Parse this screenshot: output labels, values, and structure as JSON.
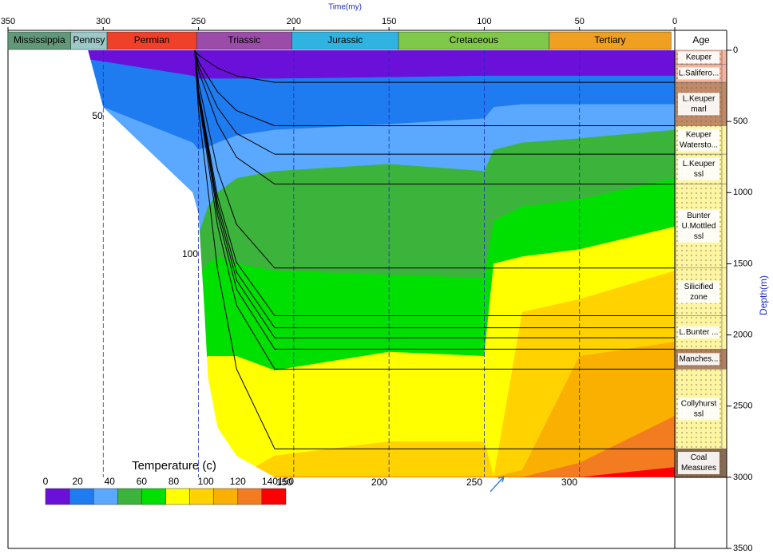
{
  "chart_data": {
    "type": "burial-history",
    "x_label": "Time(my)",
    "y_label": "Depth(m)",
    "xlim": [
      350,
      0
    ],
    "xticks": [
      350,
      300,
      250,
      200,
      150,
      100,
      50,
      0
    ],
    "ylim": [
      0,
      3500
    ],
    "yticks": [
      0,
      500,
      1000,
      1500,
      2000,
      2500,
      3000,
      3500
    ],
    "grid": true,
    "periods": [
      {
        "name": "Mississippia",
        "start": 350,
        "end": 317,
        "color": "#62987a"
      },
      {
        "name": "Pennsy",
        "start": 317,
        "end": 298,
        "color": "#9cc8c8"
      },
      {
        "name": "Permian",
        "start": 298,
        "end": 251,
        "color": "#f0402a"
      },
      {
        "name": "Triassic",
        "start": 251,
        "end": 201,
        "color": "#9a4ca8"
      },
      {
        "name": "Jurassic",
        "start": 201,
        "end": 145,
        "color": "#2fb4e2"
      },
      {
        "name": "Cretaceous",
        "start": 145,
        "end": 66,
        "color": "#80c84a"
      },
      {
        "name": "Tertiary",
        "start": 66,
        "end": 2,
        "color": "#f0a020"
      }
    ],
    "age_header": "Age",
    "units": [
      {
        "lines": [
          "Keuper"
        ],
        "top": 0,
        "bottom": 100,
        "color": "#f5b49c"
      },
      {
        "lines": [
          "L.Salifero..."
        ],
        "top": 100,
        "bottom": 225,
        "color": "#f5b49c"
      },
      {
        "lines": [
          "L.Keuper",
          "marl"
        ],
        "top": 225,
        "bottom": 530,
        "color": "#c08a66"
      },
      {
        "lines": [
          "Keuper",
          "Watersto..."
        ],
        "top": 530,
        "bottom": 730,
        "color": "#fff5a0"
      },
      {
        "lines": [
          "L.Keuper",
          "ssl"
        ],
        "top": 730,
        "bottom": 940,
        "color": "#fff5a0"
      },
      {
        "lines": [
          "Bunter",
          "U.Mottled",
          "ssl"
        ],
        "top": 940,
        "bottom": 1530,
        "color": "#fff5a0"
      },
      {
        "lines": [
          "Silicified",
          "zone"
        ],
        "top": 1530,
        "bottom": 1865,
        "color": "#fff5a0"
      },
      {
        "lines": [
          "L.Bunter ..."
        ],
        "top": 1865,
        "bottom": 2100,
        "color": "#fff5a0"
      },
      {
        "lines": [
          "Manches..."
        ],
        "top": 2100,
        "bottom": 2240,
        "color": "#b08060"
      },
      {
        "lines": [
          "Collyhurst",
          "ssl"
        ],
        "top": 2240,
        "bottom": 2800,
        "color": "#fff5a0"
      },
      {
        "lines": [
          "Coal",
          "Measures"
        ],
        "top": 2800,
        "bottom": 3000,
        "color": "#8a6a50"
      }
    ],
    "isotherm_times": [
      310,
      300,
      253,
      250,
      245,
      240,
      230,
      210,
      150,
      100,
      95,
      80,
      50,
      0
    ],
    "isotherm_depths": [
      [
        60,
        80,
        180,
        200,
        200,
        200,
        200,
        200,
        190,
        180,
        180,
        180,
        180,
        180
      ],
      [
        300,
        400,
        650,
        700,
        680,
        650,
        600,
        560,
        520,
        480,
        400,
        380,
        380,
        380
      ],
      [
        700,
        800,
        1000,
        1300,
        1100,
        1000,
        900,
        850,
        800,
        850,
        700,
        650,
        620,
        560
      ],
      [
        1000,
        1100,
        1400,
        1600,
        1500,
        1450,
        1500,
        1550,
        1580,
        1600,
        1200,
        1100,
        1050,
        900
      ],
      [
        1500,
        1600,
        1900,
        2200,
        2150,
        2150,
        2150,
        2250,
        2120,
        2150,
        1500,
        1450,
        1400,
        1240
      ],
      [
        3000,
        3000,
        3000,
        3000,
        3000,
        3000,
        3000,
        2850,
        2750,
        2750,
        3000,
        1840,
        1750,
        1550
      ],
      [
        3000,
        3000,
        3000,
        3000,
        3000,
        3000,
        3000,
        3000,
        3000,
        3000,
        3000,
        2950,
        2150,
        2050
      ],
      [
        3000,
        3000,
        3000,
        3000,
        3000,
        3000,
        3000,
        3000,
        3000,
        3000,
        3000,
        3000,
        2900,
        2570
      ],
      [
        3000,
        3000,
        3000,
        3000,
        3000,
        3000,
        3000,
        3000,
        3000,
        3000,
        3000,
        3000,
        3000,
        2930
      ]
    ],
    "band_colors": [
      "#6a10d8",
      "#1e7bf0",
      "#5aa8ff",
      "#3cb43c",
      "#00e000",
      "#ffff00",
      "#ffd200",
      "#f9b000",
      "#f47c20",
      "#ff0000"
    ],
    "section_base": {
      "time": [
        308,
        300,
        253,
        250,
        247,
        245,
        240,
        230,
        210,
        0
      ],
      "depth": [
        0,
        400,
        1000,
        1150,
        1800,
        2300,
        2650,
        2850,
        3000,
        3000
      ]
    },
    "horizon_times": [
      252,
      250,
      240,
      230,
      210,
      0
    ],
    "horizons": [
      [
        0,
        34,
        124,
        180,
        225,
        225
      ],
      [
        0,
        80,
        292,
        424,
        530,
        530
      ],
      [
        0,
        110,
        402,
        584,
        730,
        730
      ],
      [
        0,
        141,
        517,
        752,
        940,
        940
      ],
      [
        0,
        230,
        842,
        1224,
        1530,
        1530
      ],
      [
        0,
        280,
        1026,
        1492,
        1865,
        1865
      ],
      [
        0,
        293,
        1073,
        1560,
        1950,
        1950
      ],
      [
        0,
        303,
        1111,
        1616,
        2020,
        2020
      ],
      [
        0,
        315,
        1155,
        1680,
        2100,
        2100
      ],
      [
        0,
        336,
        1232,
        1792,
        2240,
        2240
      ],
      [
        0,
        420,
        1540,
        2240,
        2800,
        2800
      ]
    ],
    "legend": {
      "title": "Temperature (c)",
      "range": [
        0,
        150
      ],
      "ticks": [
        0,
        20,
        40,
        60,
        80,
        100,
        120,
        140,
        150
      ]
    },
    "annotations": [
      "50",
      "100",
      "150",
      "200",
      "250",
      "300"
    ]
  }
}
